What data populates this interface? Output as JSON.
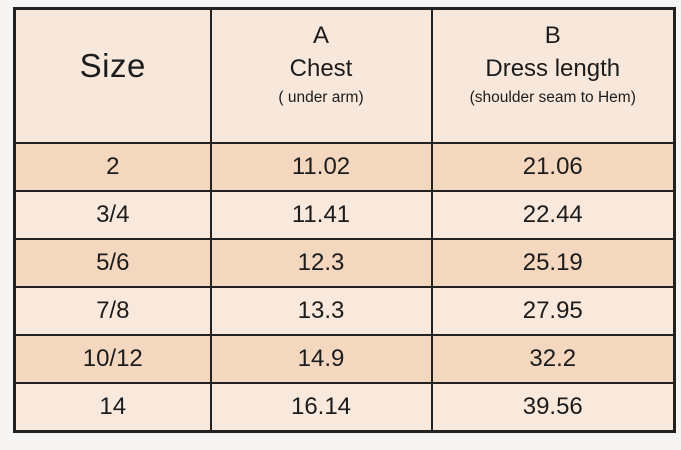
{
  "chart_data": {
    "type": "table",
    "columns": [
      {
        "letter": "",
        "title": "Size",
        "subtitle": ""
      },
      {
        "letter": "A",
        "title": "Chest",
        "subtitle": "( under arm)"
      },
      {
        "letter": "B",
        "title": "Dress length",
        "subtitle": "(shoulder seam to Hem)"
      }
    ],
    "rows": [
      {
        "size": "2",
        "chest": "11.02",
        "dress_length": "21.06",
        "shade": "dark"
      },
      {
        "size": "3/4",
        "chest": "11.41",
        "dress_length": "22.44",
        "shade": "light"
      },
      {
        "size": "5/6",
        "chest": "12.3",
        "dress_length": "25.19",
        "shade": "dark"
      },
      {
        "size": "7/8",
        "chest": "13.3",
        "dress_length": "27.95",
        "shade": "light"
      },
      {
        "size": "10/12",
        "chest": "14.9",
        "dress_length": "32.2",
        "shade": "dark"
      },
      {
        "size": "14",
        "chest": "16.14",
        "dress_length": "39.56",
        "shade": "light"
      }
    ]
  },
  "colors": {
    "page_background": "#f6f5f3",
    "header_background": "#f8e8db",
    "row_dark": "#f4d7bf",
    "row_light": "#f9e9dd",
    "border": "#222222",
    "text": "#1c1c1c"
  }
}
